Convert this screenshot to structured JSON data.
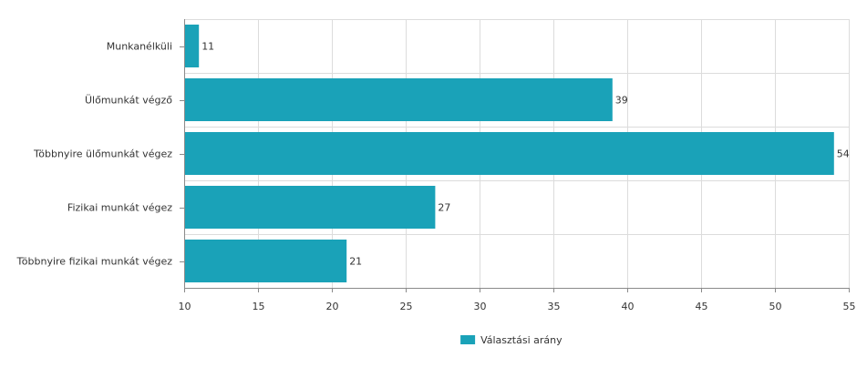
{
  "chart_data": {
    "type": "bar",
    "orientation": "horizontal",
    "categories": [
      "Munkanélküli",
      "Ülőmunkát végző",
      "Többnyire ülőmunkát végez",
      "Fizikai munkát végez",
      "Többnyire fizikai munkát végez"
    ],
    "series": [
      {
        "name": "Választási arány",
        "values": [
          11,
          39,
          54,
          27,
          21
        ],
        "color": "#1aa2b8"
      }
    ],
    "xlim": [
      10,
      55
    ],
    "xticks": [
      10,
      15,
      20,
      25,
      30,
      35,
      40,
      45,
      50,
      55
    ],
    "grid": true,
    "legend_position": "bottom-center",
    "data_labels": true
  }
}
